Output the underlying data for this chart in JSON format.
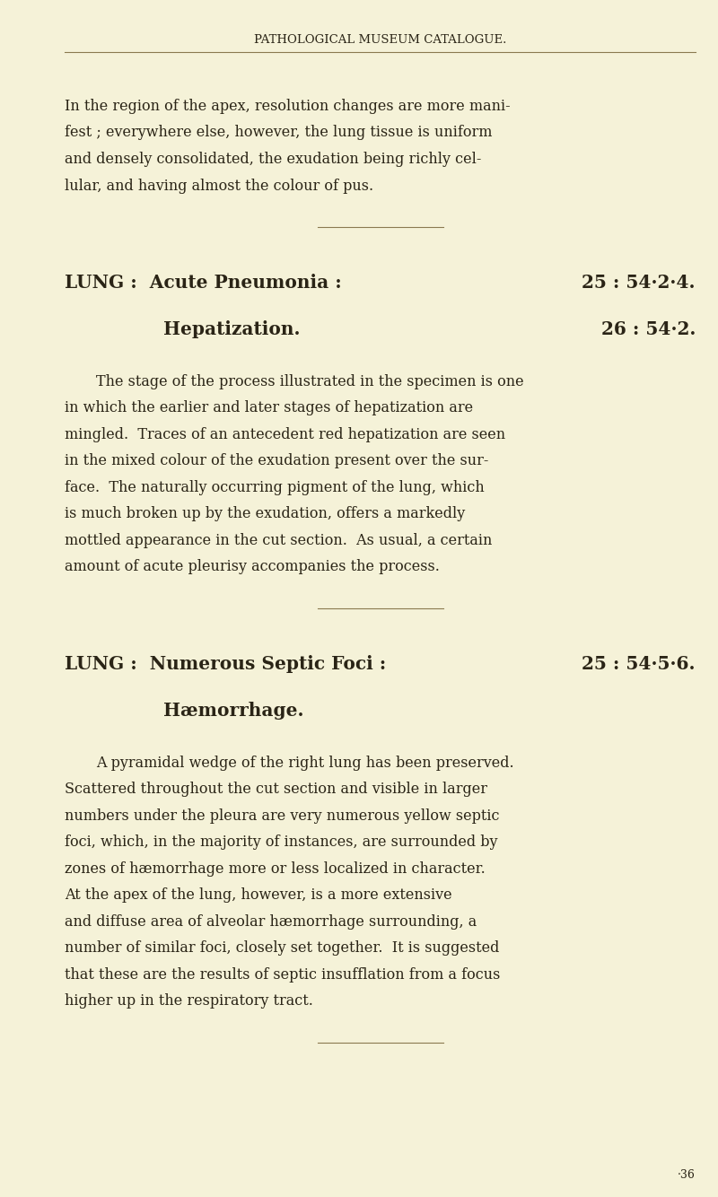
{
  "background_color": "#f5f2d8",
  "text_color": "#2a2416",
  "page_header": "PATHOLOGICAL MUSEUM CATALOGUE.",
  "header_line_color": "#8a7a50",
  "paragraph1_lines": [
    "In the region of the apex, resolution changes are more mani-",
    "fest ; everywhere else, however, the lung tissue is uniform",
    "and densely consolidated, the exudation being richly cel-",
    "lular, and having almost the colour of pus."
  ],
  "section1_title_left": "LUNG :  Acute Pneumonia :",
  "section1_title_right": "25 : 54·2·4.",
  "section1_sub_left": "Hepatization.",
  "section1_sub_right": "26 : 54·2.",
  "paragraph2_lines": [
    "The stage of the process illustrated in the specimen is one",
    "in which the earlier and later stages of hepatization are",
    "mingled.  Traces of an antecedent red hepatization are seen",
    "in the mixed colour of the exudation present over the sur-",
    "face.  The naturally occurring pigment of the lung, which",
    "is much broken up by the exudation, offers a markedly",
    "mottled appearance in the cut section.  As usual, a certain",
    "amount of acute pleurisy accompanies the process."
  ],
  "section2_title_left": "LUNG :  Numerous Septic Foci :",
  "section2_title_right": "25 : 54·5·6.",
  "section2_sub_left": "Hæmorrhage.",
  "paragraph3_lines": [
    "A pyramidal wedge of the right lung has been preserved.",
    "Scattered throughout the cut section and visible in larger",
    "numbers under the pleura are very numerous yellow septic",
    "foci, which, in the majority of instances, are surrounded by",
    "zones of hæmorrhage more or less localized in character.",
    "At the apex of the lung, however, is a more extensive",
    "and diffuse area of alveolar hæmorrhage surrounding, a",
    "number of similar foci, closely set together.  It is suggested",
    "that these are the results of septic insufflation from a focus",
    "higher up in the respiratory tract."
  ],
  "footer_text": "·36",
  "divider_color": "#8a7a50"
}
